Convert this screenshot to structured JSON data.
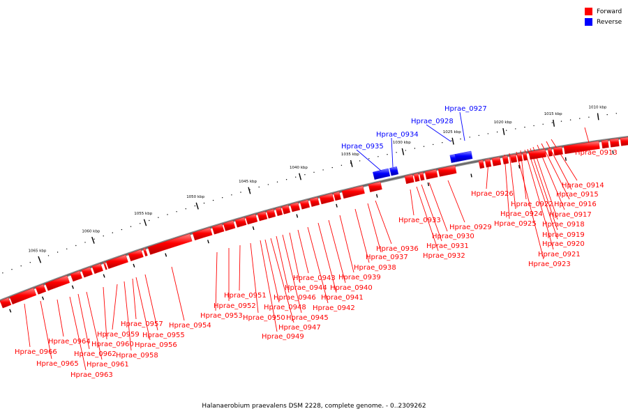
{
  "legend": {
    "forward_label": "Forward",
    "reverse_label": "Reverse",
    "forward_color": "#ff0000",
    "reverse_color": "#0000ff"
  },
  "caption": "Halanaerobium praevalens DSM 2228, complete genome. - 0..2309262",
  "ticks": [
    "1010 kbp",
    "1015 kbp",
    "1020 kbp",
    "1025 kbp",
    "1030 kbp",
    "1035 kbp",
    "1040 kbp",
    "1045 kbp",
    "1050 kbp",
    "1055 kbp",
    "1060 kbp",
    "1065 kbp"
  ],
  "genes": [
    {
      "name": "Hprae_0913",
      "strand": "forward"
    },
    {
      "name": "Hprae_0914",
      "strand": "forward"
    },
    {
      "name": "Hprae_0915",
      "strand": "forward"
    },
    {
      "name": "Hprae_0916",
      "strand": "forward"
    },
    {
      "name": "Hprae_0917",
      "strand": "forward"
    },
    {
      "name": "Hprae_0918",
      "strand": "forward"
    },
    {
      "name": "Hprae_0919",
      "strand": "forward"
    },
    {
      "name": "Hprae_0920",
      "strand": "forward"
    },
    {
      "name": "Hprae_0921",
      "strand": "forward"
    },
    {
      "name": "Hprae_0922",
      "strand": "forward"
    },
    {
      "name": "Hprae_0923",
      "strand": "forward"
    },
    {
      "name": "Hprae_0924",
      "strand": "forward"
    },
    {
      "name": "Hprae_0925",
      "strand": "forward"
    },
    {
      "name": "Hprae_0926",
      "strand": "forward"
    },
    {
      "name": "Hprae_0927",
      "strand": "reverse"
    },
    {
      "name": "Hprae_0928",
      "strand": "reverse"
    },
    {
      "name": "Hprae_0929",
      "strand": "forward"
    },
    {
      "name": "Hprae_0930",
      "strand": "forward"
    },
    {
      "name": "Hprae_0931",
      "strand": "forward"
    },
    {
      "name": "Hprae_0932",
      "strand": "forward"
    },
    {
      "name": "Hprae_0933",
      "strand": "forward"
    },
    {
      "name": "Hprae_0934",
      "strand": "reverse"
    },
    {
      "name": "Hprae_0935",
      "strand": "reverse"
    },
    {
      "name": "Hprae_0936",
      "strand": "forward"
    },
    {
      "name": "Hprae_0937",
      "strand": "forward"
    },
    {
      "name": "Hprae_0938",
      "strand": "forward"
    },
    {
      "name": "Hprae_0939",
      "strand": "forward"
    },
    {
      "name": "Hprae_0940",
      "strand": "forward"
    },
    {
      "name": "Hprae_0941",
      "strand": "forward"
    },
    {
      "name": "Hprae_0942",
      "strand": "forward"
    },
    {
      "name": "Hprae_0943",
      "strand": "forward"
    },
    {
      "name": "Hprae_0944",
      "strand": "forward"
    },
    {
      "name": "Hprae_0945",
      "strand": "forward"
    },
    {
      "name": "Hprae_0946",
      "strand": "forward"
    },
    {
      "name": "Hprae_0947",
      "strand": "forward"
    },
    {
      "name": "Hprae_0948",
      "strand": "forward"
    },
    {
      "name": "Hprae_0949",
      "strand": "forward"
    },
    {
      "name": "Hprae_0950",
      "strand": "forward"
    },
    {
      "name": "Hprae_0951",
      "strand": "forward"
    },
    {
      "name": "Hprae_0952",
      "strand": "forward"
    },
    {
      "name": "Hprae_0953",
      "strand": "forward"
    },
    {
      "name": "Hprae_0954",
      "strand": "forward"
    },
    {
      "name": "Hprae_0955",
      "strand": "forward"
    },
    {
      "name": "Hprae_0956",
      "strand": "forward"
    },
    {
      "name": "Hprae_0957",
      "strand": "forward"
    },
    {
      "name": "Hprae_0958",
      "strand": "forward"
    },
    {
      "name": "Hprae_0959",
      "strand": "forward"
    },
    {
      "name": "Hprae_0960",
      "strand": "forward"
    },
    {
      "name": "Hprae_0961",
      "strand": "forward"
    },
    {
      "name": "Hprae_0962",
      "strand": "forward"
    },
    {
      "name": "Hprae_0963",
      "strand": "forward"
    },
    {
      "name": "Hprae_0964",
      "strand": "forward"
    },
    {
      "name": "Hprae_0965",
      "strand": "forward"
    },
    {
      "name": "Hprae_0966",
      "strand": "forward"
    }
  ]
}
